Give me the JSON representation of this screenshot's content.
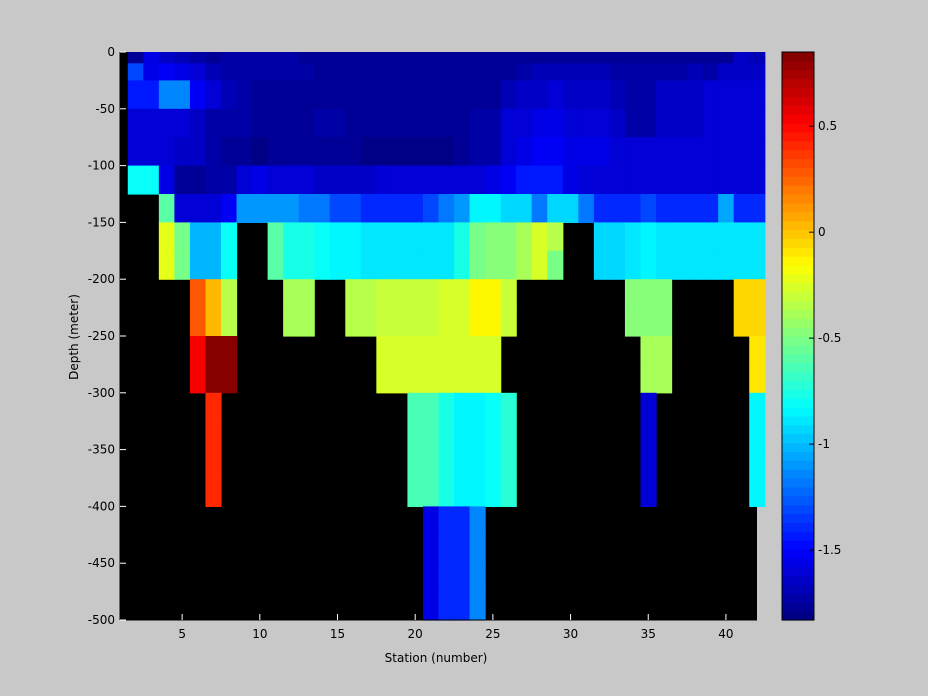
{
  "chart_data": {
    "type": "heatmap",
    "xlabel": "Station (number)",
    "ylabel": "Depth (meter)",
    "x_ticks": [
      "5",
      "10",
      "15",
      "20",
      "25",
      "30",
      "35",
      "40"
    ],
    "y_ticks": [
      "0",
      "-50",
      "-100",
      "-150",
      "-200",
      "-250",
      "-300",
      "-350",
      "-400",
      "-450",
      "-500"
    ],
    "colorbar_ticks": [
      "0.5",
      "0",
      "-0.5",
      "-1",
      "-1.5"
    ],
    "xlim": [
      1,
      42
    ],
    "ylim": [
      -500,
      0
    ],
    "clim": [
      -1.83,
      0.85
    ],
    "colormap": "jet",
    "nodata_color": "#000000",
    "stations": [
      2,
      3,
      4,
      5,
      6,
      7,
      8,
      9,
      10,
      11,
      12,
      13,
      14,
      15,
      16,
      17,
      18,
      19,
      20,
      21,
      22,
      23,
      24,
      25,
      26,
      27,
      28,
      29,
      30,
      31,
      32,
      33,
      34,
      35,
      36,
      37,
      38,
      39,
      40,
      41,
      42
    ],
    "depth_bins": [
      [
        0,
        -10
      ],
      [
        -10,
        -25
      ],
      [
        -25,
        -50
      ],
      [
        -50,
        -75
      ],
      [
        -75,
        -100
      ],
      [
        -100,
        -125
      ],
      [
        -125,
        -150
      ],
      [
        -150,
        -175
      ],
      [
        -175,
        -200
      ],
      [
        -200,
        -225
      ],
      [
        -225,
        -250
      ],
      [
        -250,
        -275
      ],
      [
        -275,
        -300
      ],
      [
        -300,
        -325
      ],
      [
        -325,
        -350
      ],
      [
        -350,
        -375
      ],
      [
        -375,
        -400
      ],
      [
        -400,
        -425
      ],
      [
        -425,
        -450
      ],
      [
        -450,
        -475
      ],
      [
        -475,
        -500
      ]
    ],
    "values": [
      [
        -1.75,
        -1.55,
        -1.65,
        -1.7,
        -1.72,
        -1.75,
        -1.74,
        -1.73,
        -1.72,
        -1.72,
        -1.72,
        -1.75,
        -1.77,
        -1.77,
        -1.77,
        -1.77,
        -1.77,
        -1.77,
        -1.77,
        -1.77,
        -1.77,
        -1.77,
        -1.77,
        -1.77,
        -1.77,
        -1.77,
        -1.77,
        -1.77,
        -1.77,
        -1.77,
        -1.77,
        -1.77,
        -1.77,
        -1.77,
        -1.77,
        -1.77,
        -1.77,
        -1.77,
        -1.77,
        -1.65,
        -1.7
      ],
      [
        -1.3,
        -1.55,
        -1.5,
        -1.55,
        -1.62,
        -1.7,
        -1.72,
        -1.72,
        -1.74,
        -1.74,
        -1.74,
        -1.74,
        -1.76,
        -1.76,
        -1.76,
        -1.76,
        -1.76,
        -1.76,
        -1.76,
        -1.76,
        -1.76,
        -1.76,
        -1.76,
        -1.76,
        -1.76,
        -1.72,
        -1.7,
        -1.7,
        -1.7,
        -1.7,
        -1.7,
        -1.72,
        -1.74,
        -1.74,
        -1.72,
        -1.72,
        -1.7,
        -1.72,
        -1.65,
        -1.65,
        -1.65
      ],
      [
        -1.45,
        -1.45,
        -1.15,
        -1.15,
        -1.5,
        -1.62,
        -1.7,
        -1.72,
        -1.76,
        -1.76,
        -1.76,
        -1.76,
        -1.76,
        -1.76,
        -1.76,
        -1.76,
        -1.76,
        -1.76,
        -1.76,
        -1.76,
        -1.76,
        -1.76,
        -1.76,
        -1.76,
        -1.7,
        -1.66,
        -1.64,
        -1.62,
        -1.66,
        -1.66,
        -1.66,
        -1.7,
        -1.74,
        -1.72,
        -1.66,
        -1.66,
        -1.66,
        -1.62,
        -1.62,
        -1.6,
        -1.6
      ],
      [
        -1.6,
        -1.6,
        -1.6,
        -1.6,
        -1.66,
        -1.72,
        -1.72,
        -1.72,
        -1.78,
        -1.78,
        -1.78,
        -1.76,
        -1.74,
        -1.74,
        -1.78,
        -1.78,
        -1.78,
        -1.78,
        -1.78,
        -1.78,
        -1.78,
        -1.78,
        -1.72,
        -1.72,
        -1.62,
        -1.62,
        -1.56,
        -1.56,
        -1.62,
        -1.62,
        -1.62,
        -1.66,
        -1.72,
        -1.72,
        -1.66,
        -1.66,
        -1.66,
        -1.62,
        -1.6,
        -1.6,
        -1.6
      ],
      [
        -1.6,
        -1.6,
        -1.6,
        -1.66,
        -1.66,
        -1.72,
        -1.76,
        -1.76,
        -1.8,
        -1.78,
        -1.78,
        -1.76,
        -1.76,
        -1.76,
        -1.78,
        -1.8,
        -1.8,
        -1.8,
        -1.8,
        -1.82,
        -1.82,
        -1.78,
        -1.72,
        -1.72,
        -1.62,
        -1.56,
        -1.5,
        -1.5,
        -1.56,
        -1.56,
        -1.56,
        -1.6,
        -1.62,
        -1.62,
        -1.6,
        -1.6,
        -1.6,
        -1.6,
        -1.6,
        -1.6,
        -1.6
      ],
      [
        -0.8,
        -0.8,
        -1.55,
        -1.76,
        -1.76,
        -1.72,
        -1.72,
        -1.62,
        -1.56,
        -1.62,
        -1.62,
        -1.62,
        -1.66,
        -1.66,
        -1.66,
        -1.66,
        -1.62,
        -1.62,
        -1.62,
        -1.62,
        -1.62,
        -1.62,
        -1.62,
        -1.55,
        -1.5,
        -1.45,
        -1.45,
        -1.45,
        -1.55,
        -1.62,
        -1.62,
        -1.62,
        -1.62,
        -1.62,
        -1.62,
        -1.62,
        -1.62,
        -1.62,
        -1.62,
        -1.62,
        -1.62
      ],
      [
        null,
        null,
        -0.6,
        -1.6,
        -1.6,
        -1.6,
        -1.5,
        -1.1,
        -1.1,
        -1.1,
        -1.1,
        -1.2,
        -1.2,
        -1.3,
        -1.3,
        -1.4,
        -1.4,
        -1.4,
        -1.4,
        -1.3,
        -1.2,
        -1.1,
        -0.85,
        -0.85,
        -0.95,
        -0.95,
        -1.2,
        -0.95,
        -0.95,
        -1.2,
        -1.4,
        -1.4,
        -1.4,
        -1.3,
        -1.4,
        -1.4,
        -1.4,
        -1.4,
        -1.05,
        -1.4,
        -1.4
      ],
      [
        null,
        null,
        -0.2,
        -0.5,
        -1.0,
        -1.0,
        -0.8,
        null,
        null,
        -0.6,
        -0.75,
        -0.75,
        -0.8,
        -0.85,
        -0.85,
        -0.9,
        -0.9,
        -0.9,
        -0.9,
        -0.9,
        -0.9,
        -0.75,
        -0.5,
        -0.45,
        -0.45,
        -0.4,
        -0.25,
        -0.35,
        null,
        null,
        -0.95,
        -0.95,
        -0.9,
        -0.85,
        -0.9,
        -0.9,
        -0.9,
        -0.9,
        -0.9,
        -0.9,
        -0.9
      ],
      [
        null,
        null,
        -0.2,
        -0.5,
        -1.0,
        -1.0,
        -0.8,
        null,
        null,
        -0.6,
        -0.75,
        -0.75,
        -0.8,
        -0.85,
        -0.85,
        -0.9,
        -0.9,
        -0.9,
        -0.9,
        -0.9,
        -0.9,
        -0.75,
        -0.5,
        -0.45,
        -0.45,
        -0.4,
        -0.25,
        -0.5,
        null,
        null,
        -0.95,
        -0.95,
        -0.9,
        -0.85,
        -0.9,
        -0.9,
        -0.9,
        -0.9,
        -0.9,
        -0.9,
        -0.9
      ],
      [
        null,
        null,
        null,
        null,
        0.3,
        0.05,
        -0.35,
        null,
        null,
        null,
        -0.4,
        -0.4,
        null,
        null,
        -0.35,
        -0.35,
        -0.3,
        -0.3,
        -0.3,
        -0.3,
        -0.25,
        -0.25,
        -0.15,
        -0.15,
        -0.3,
        null,
        null,
        null,
        null,
        null,
        null,
        null,
        -0.45,
        -0.45,
        -0.45,
        null,
        null,
        null,
        null,
        -0.05,
        -0.05
      ],
      [
        null,
        null,
        null,
        null,
        0.3,
        0.05,
        -0.35,
        null,
        null,
        null,
        -0.4,
        -0.4,
        null,
        null,
        -0.35,
        -0.35,
        -0.3,
        -0.3,
        -0.3,
        -0.3,
        -0.25,
        -0.25,
        -0.15,
        -0.15,
        -0.3,
        null,
        null,
        null,
        null,
        null,
        null,
        null,
        -0.45,
        -0.45,
        -0.45,
        null,
        null,
        null,
        null,
        -0.05,
        -0.05
      ],
      [
        null,
        null,
        null,
        null,
        0.55,
        0.85,
        0.85,
        null,
        null,
        null,
        null,
        null,
        null,
        null,
        null,
        null,
        -0.25,
        -0.25,
        -0.25,
        -0.25,
        -0.25,
        -0.25,
        -0.25,
        -0.25,
        null,
        null,
        null,
        null,
        null,
        null,
        null,
        null,
        null,
        -0.4,
        -0.4,
        null,
        null,
        null,
        null,
        null,
        -0.1
      ],
      [
        null,
        null,
        null,
        null,
        0.55,
        0.85,
        0.85,
        null,
        null,
        null,
        null,
        null,
        null,
        null,
        null,
        null,
        -0.25,
        -0.25,
        -0.25,
        -0.25,
        -0.25,
        -0.25,
        -0.25,
        -0.25,
        null,
        null,
        null,
        null,
        null,
        null,
        null,
        null,
        null,
        -0.4,
        -0.4,
        null,
        null,
        null,
        null,
        null,
        -0.1
      ],
      [
        null,
        null,
        null,
        null,
        null,
        0.4,
        null,
        null,
        null,
        null,
        null,
        null,
        null,
        null,
        null,
        null,
        null,
        null,
        -0.65,
        -0.65,
        -0.75,
        -0.85,
        -0.85,
        -0.8,
        -0.7,
        null,
        null,
        null,
        null,
        null,
        null,
        null,
        null,
        -1.6,
        null,
        null,
        null,
        null,
        null,
        null,
        -0.85
      ],
      [
        null,
        null,
        null,
        null,
        null,
        0.4,
        null,
        null,
        null,
        null,
        null,
        null,
        null,
        null,
        null,
        null,
        null,
        null,
        -0.65,
        -0.65,
        -0.75,
        -0.85,
        -0.85,
        -0.8,
        -0.7,
        null,
        null,
        null,
        null,
        null,
        null,
        null,
        null,
        -1.6,
        null,
        null,
        null,
        null,
        null,
        null,
        -0.85
      ],
      [
        null,
        null,
        null,
        null,
        null,
        0.4,
        null,
        null,
        null,
        null,
        null,
        null,
        null,
        null,
        null,
        null,
        null,
        null,
        -0.65,
        -0.65,
        -0.75,
        -0.85,
        -0.85,
        -0.8,
        -0.7,
        null,
        null,
        null,
        null,
        null,
        null,
        null,
        null,
        -1.6,
        null,
        null,
        null,
        null,
        null,
        null,
        -0.85
      ],
      [
        null,
        null,
        null,
        null,
        null,
        0.4,
        null,
        null,
        null,
        null,
        null,
        null,
        null,
        null,
        null,
        null,
        null,
        null,
        -0.65,
        -0.65,
        -0.75,
        -0.85,
        -0.85,
        -0.8,
        -0.7,
        null,
        null,
        null,
        null,
        null,
        null,
        null,
        null,
        -1.6,
        null,
        null,
        null,
        null,
        null,
        null,
        -0.85
      ],
      [
        null,
        null,
        null,
        null,
        null,
        null,
        null,
        null,
        null,
        null,
        null,
        null,
        null,
        null,
        null,
        null,
        null,
        null,
        null,
        -1.55,
        -1.4,
        -1.4,
        -1.15,
        null,
        null,
        null,
        null,
        null,
        null,
        null,
        null,
        null,
        null,
        null,
        null,
        null,
        null,
        null,
        null,
        null,
        null
      ],
      [
        null,
        null,
        null,
        null,
        null,
        null,
        null,
        null,
        null,
        null,
        null,
        null,
        null,
        null,
        null,
        null,
        null,
        null,
        null,
        -1.55,
        -1.4,
        -1.4,
        -1.15,
        null,
        null,
        null,
        null,
        null,
        null,
        null,
        null,
        null,
        null,
        null,
        null,
        null,
        null,
        null,
        null,
        null,
        null
      ],
      [
        null,
        null,
        null,
        null,
        null,
        null,
        null,
        null,
        null,
        null,
        null,
        null,
        null,
        null,
        null,
        null,
        null,
        null,
        null,
        -1.55,
        -1.4,
        -1.4,
        -1.15,
        null,
        null,
        null,
        null,
        null,
        null,
        null,
        null,
        null,
        null,
        null,
        null,
        null,
        null,
        null,
        null,
        null,
        null
      ],
      [
        null,
        null,
        null,
        null,
        null,
        null,
        null,
        null,
        null,
        null,
        null,
        null,
        null,
        null,
        null,
        null,
        null,
        null,
        null,
        -1.55,
        -1.4,
        -1.4,
        -1.15,
        null,
        null,
        null,
        null,
        null,
        null,
        null,
        null,
        null,
        null,
        null,
        null,
        null,
        null,
        null,
        null,
        null,
        null
      ]
    ]
  }
}
